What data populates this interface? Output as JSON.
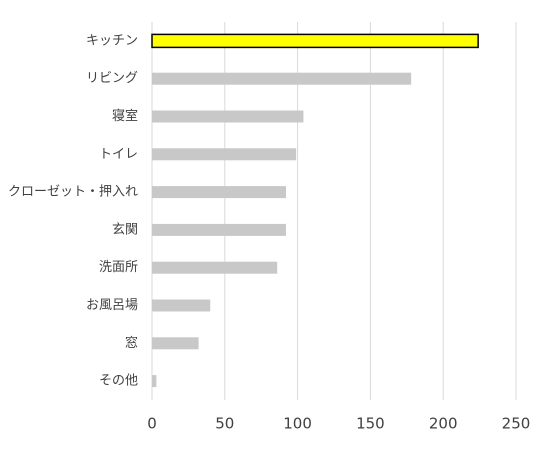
{
  "chart_data": {
    "type": "barh",
    "categories": [
      "キッチン",
      "リビング",
      "寝室",
      "トイレ",
      "クローゼット・押入れ",
      "玄関",
      "洗面所",
      "お風呂場",
      "窓",
      "その他"
    ],
    "values": [
      224,
      178,
      104,
      99,
      92,
      92,
      86,
      40,
      32,
      3
    ],
    "colors": [
      "#ffff00",
      "#c8c8c8",
      "#c8c8c8",
      "#c8c8c8",
      "#c8c8c8",
      "#c8c8c8",
      "#c8c8c8",
      "#c8c8c8",
      "#c8c8c8",
      "#c8c8c8"
    ],
    "edgecolors": [
      "#000000",
      null,
      null,
      null,
      null,
      null,
      null,
      null,
      null,
      null
    ],
    "xlim": [
      0,
      250
    ],
    "xticks": [
      0,
      50,
      100,
      150,
      200,
      250
    ],
    "grid": true
  }
}
